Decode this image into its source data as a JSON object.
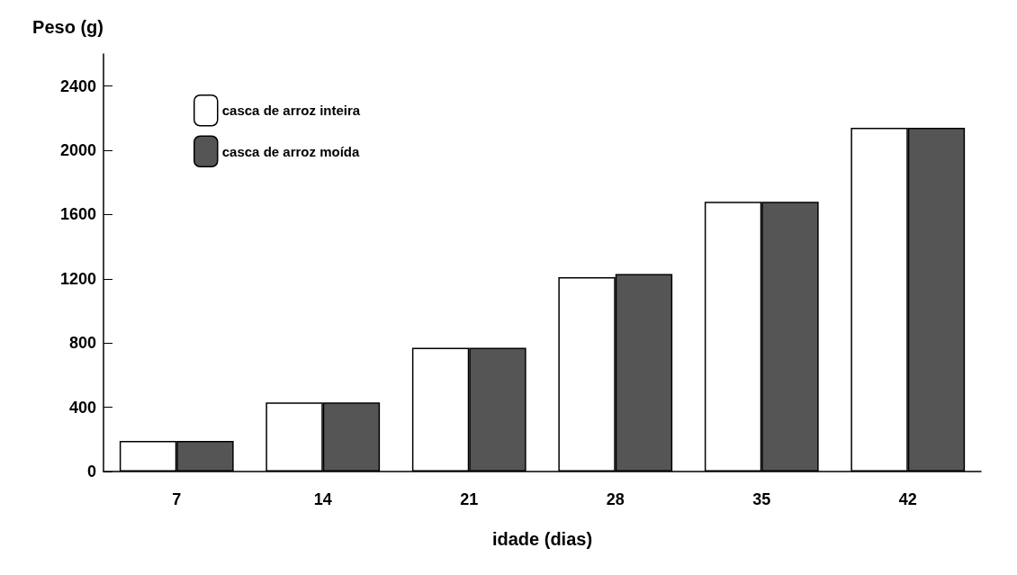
{
  "chart_data": {
    "type": "bar",
    "ylabel": "Peso (g)",
    "xlabel": "idade (dias)",
    "categories": [
      "7",
      "14",
      "21",
      "28",
      "35",
      "42"
    ],
    "series": [
      {
        "name": "casca de arroz inteira",
        "color": "#ffffff",
        "values": [
          190,
          430,
          770,
          1210,
          1680,
          2140
        ]
      },
      {
        "name": "casca de arroz moída",
        "color": "#555555",
        "values": [
          190,
          430,
          770,
          1230,
          1680,
          2140
        ]
      }
    ],
    "ylim": [
      0,
      2600
    ],
    "yticks": [
      0,
      400,
      800,
      1200,
      1600,
      2000,
      2400
    ],
    "grid": false,
    "legend": "top left"
  }
}
